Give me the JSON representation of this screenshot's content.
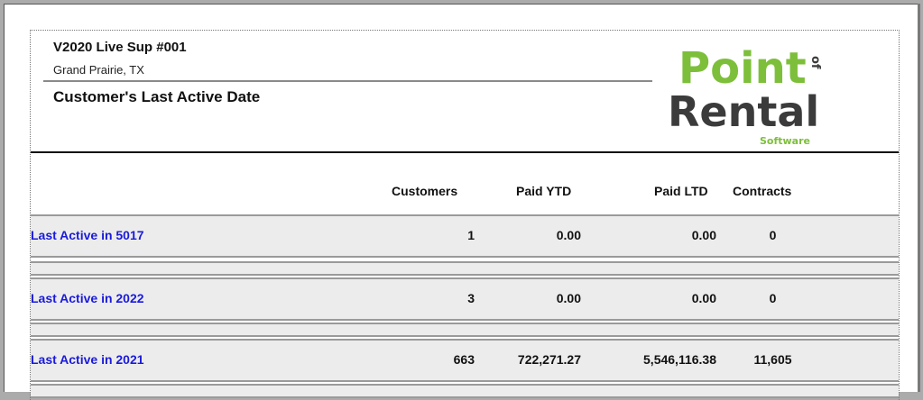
{
  "report": {
    "company_name": "V2020 Live Sup #001",
    "location": "Grand Prairie, TX",
    "title": "Customer's Last Active Date"
  },
  "logo": {
    "word1": "Point",
    "word1_suffix": "of",
    "word2": "Rental",
    "word3": "Software",
    "green": "#7dbf3a",
    "dark": "#3b3b3b"
  },
  "columns": {
    "customers": "Customers",
    "paid_ytd": "Paid YTD",
    "paid_ltd": "Paid LTD",
    "contracts": "Contracts"
  },
  "rows": [
    {
      "label": "Last Active in 5017",
      "customers": "1",
      "paid_ytd": "0.00",
      "paid_ltd": "0.00",
      "contracts": "0"
    },
    {
      "label": "Last Active in 2022",
      "customers": "3",
      "paid_ytd": "0.00",
      "paid_ltd": "0.00",
      "contracts": "0"
    },
    {
      "label": "Last Active in 2021",
      "customers": "663",
      "paid_ytd": "722,271.27",
      "paid_ltd": "5,546,116.38",
      "contracts": "11,605"
    }
  ],
  "colors": {
    "row_label": "#1a1adc",
    "band_fill": "#ececec",
    "band_border": "#9a9a9a"
  }
}
